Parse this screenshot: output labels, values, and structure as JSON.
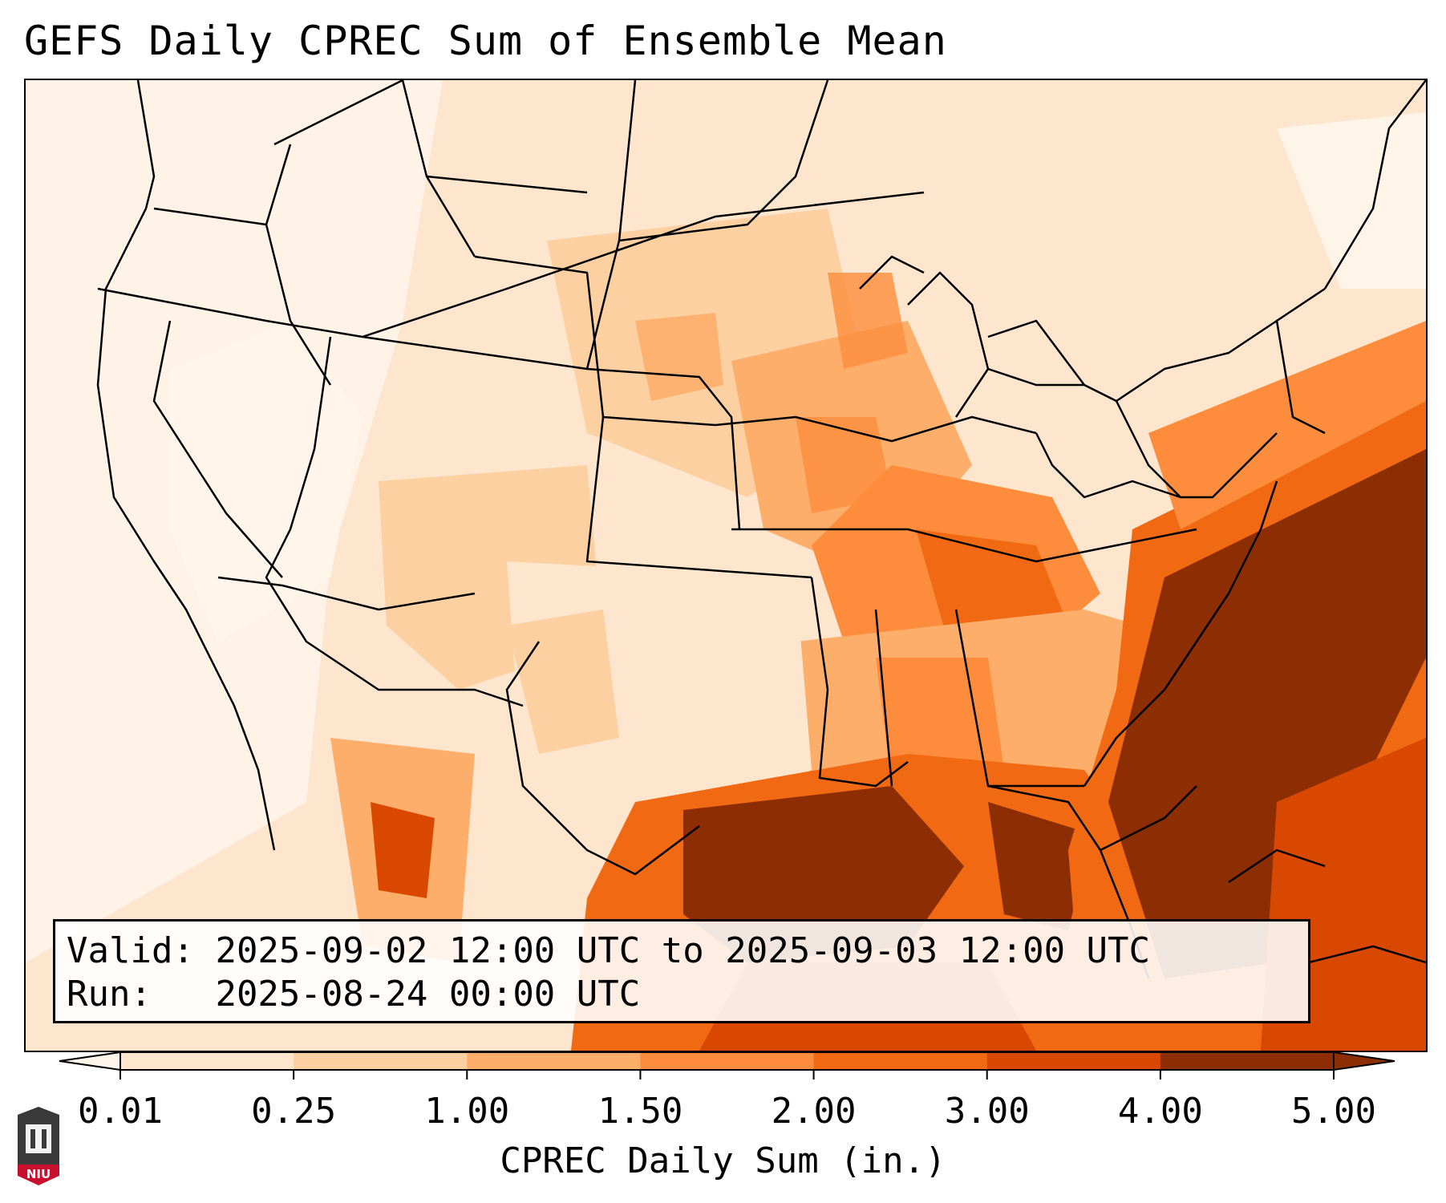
{
  "title": "GEFS Daily CPREC Sum of Ensemble Mean",
  "info": {
    "valid_label": "Valid:",
    "valid_value": "2025-09-02 12:00 UTC to 2025-09-03 12:00 UTC",
    "run_label": "Run:",
    "run_value": "2025-08-24 00:00 UTC"
  },
  "colorbar": {
    "label": "CPREC Daily Sum (in.)",
    "ticks": [
      "0.01",
      "0.25",
      "1.00",
      "1.50",
      "2.00",
      "3.00",
      "4.00",
      "5.00"
    ],
    "colors": [
      "#fff5eb",
      "#fee6ce",
      "#fdd0a2",
      "#fdae6b",
      "#fd8d3c",
      "#f16913",
      "#d94801",
      "#8c2d04"
    ],
    "extend": "both"
  },
  "logo": {
    "text": "NIU"
  }
}
